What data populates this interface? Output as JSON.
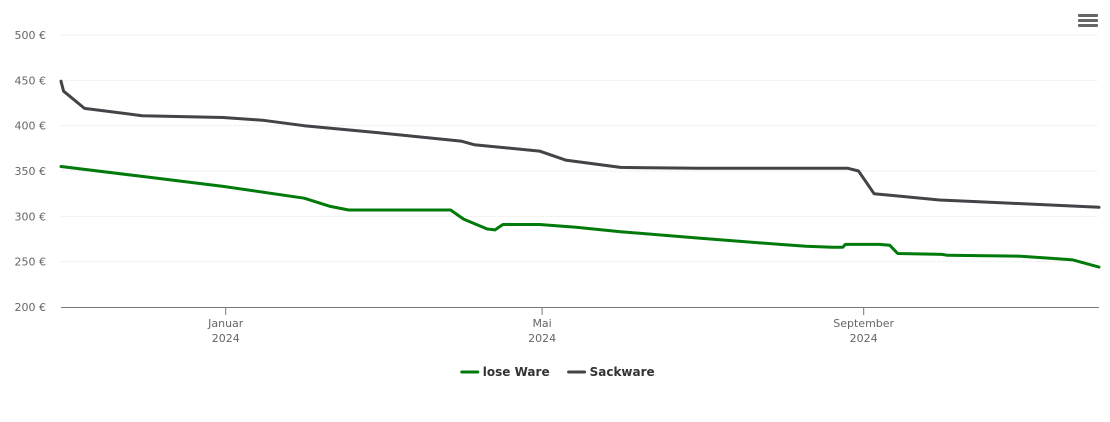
{
  "menu": {
    "icon": "hamburger-menu-icon"
  },
  "chart_data": {
    "type": "line",
    "yunit": "€",
    "ylim": [
      200,
      500
    ],
    "yticks": [
      200,
      250,
      300,
      350,
      400,
      450,
      500
    ],
    "ytick_labels": [
      "200 €",
      "250 €",
      "300 €",
      "350 €",
      "400 €",
      "450 €",
      "500 €"
    ],
    "xlim": [
      "2023-10-30",
      "2024-11-30"
    ],
    "xticks": [
      {
        "date": "2024-01-01",
        "month": "Januar",
        "year": "2024"
      },
      {
        "date": "2024-05-01",
        "month": "Mai",
        "year": "2024"
      },
      {
        "date": "2024-09-01",
        "month": "September",
        "year": "2024"
      }
    ],
    "grid": true,
    "legend": "bottom-center",
    "series": [
      {
        "name": "lose Ware",
        "color": "#007a0b",
        "points": [
          [
            "2023-10-30",
            355
          ],
          [
            "2023-11-30",
            344
          ],
          [
            "2023-12-31",
            333
          ],
          [
            "2024-01-31",
            320
          ],
          [
            "2024-02-10",
            311
          ],
          [
            "2024-02-17",
            307
          ],
          [
            "2024-03-17",
            307
          ],
          [
            "2024-03-27",
            307
          ],
          [
            "2024-04-01",
            297
          ],
          [
            "2024-04-10",
            286
          ],
          [
            "2024-04-13",
            285
          ],
          [
            "2024-04-16",
            291
          ],
          [
            "2024-04-30",
            291
          ],
          [
            "2024-05-14",
            288
          ],
          [
            "2024-05-31",
            283
          ],
          [
            "2024-06-30",
            276
          ],
          [
            "2024-07-31",
            269
          ],
          [
            "2024-08-10",
            267
          ],
          [
            "2024-08-20",
            266
          ],
          [
            "2024-08-24",
            266
          ],
          [
            "2024-08-25",
            269
          ],
          [
            "2024-09-07",
            269
          ],
          [
            "2024-09-11",
            268
          ],
          [
            "2024-09-14",
            259
          ],
          [
            "2024-09-31",
            258
          ],
          [
            "2024-10-03",
            257
          ],
          [
            "2024-10-31",
            256
          ],
          [
            "2024-11-10",
            254
          ],
          [
            "2024-11-20",
            252
          ],
          [
            "2024-11-30",
            244
          ]
        ]
      },
      {
        "name": "Sackware",
        "color": "#434348",
        "points": [
          [
            "2023-10-30",
            449
          ],
          [
            "2023-10-31",
            438
          ],
          [
            "2023-11-08",
            419
          ],
          [
            "2023-11-30",
            411
          ],
          [
            "2023-12-31",
            409
          ],
          [
            "2024-01-15",
            406
          ],
          [
            "2024-01-31",
            400
          ],
          [
            "2024-02-29",
            392
          ],
          [
            "2024-03-31",
            383
          ],
          [
            "2024-04-05",
            379
          ],
          [
            "2024-04-30",
            372
          ],
          [
            "2024-05-10",
            362
          ],
          [
            "2024-05-31",
            354
          ],
          [
            "2024-06-30",
            353
          ],
          [
            "2024-07-31",
            353
          ],
          [
            "2024-08-26",
            353
          ],
          [
            "2024-08-30",
            350
          ],
          [
            "2024-09-05",
            325
          ],
          [
            "2024-09-30",
            318
          ],
          [
            "2024-10-15",
            316
          ],
          [
            "2024-10-31",
            314
          ],
          [
            "2024-11-30",
            310
          ]
        ]
      }
    ]
  }
}
